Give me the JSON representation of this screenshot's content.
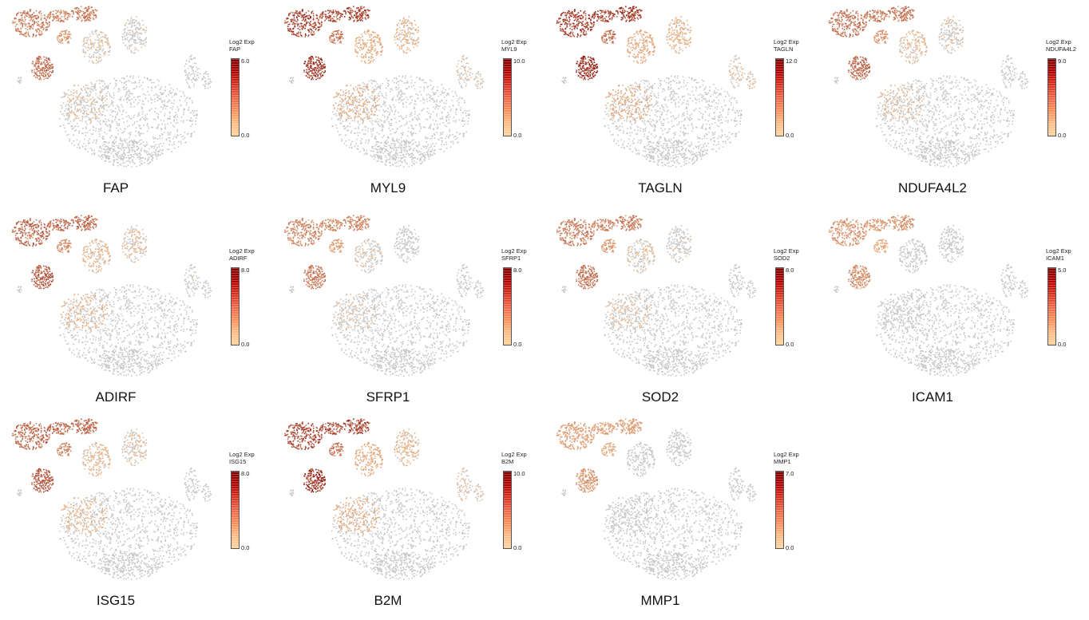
{
  "legend_title": "Log2 Exp",
  "colors": {
    "low": "#fdd49e",
    "high": "#7f0000",
    "zero": "#c8c8c8"
  },
  "chart_data": [
    {
      "type": "scatter",
      "gene": "FAP",
      "legend_min": "0.0",
      "legend_max": "6.0",
      "level": 0.55
    },
    {
      "type": "scatter",
      "gene": "MYL9",
      "legend_min": "0.0",
      "legend_max": "10.0",
      "level": 0.9
    },
    {
      "type": "scatter",
      "gene": "TAGLN",
      "legend_min": "0.0",
      "legend_max": "12.0",
      "level": 0.95
    },
    {
      "type": "scatter",
      "gene": "NDUFA4L2",
      "legend_min": "0.0",
      "legend_max": "9.0",
      "level": 0.6
    },
    {
      "type": "scatter",
      "gene": "ADIRF",
      "legend_min": "0.0",
      "legend_max": "8.0",
      "level": 0.7
    },
    {
      "type": "scatter",
      "gene": "SFRP1",
      "legend_min": "0.0",
      "legend_max": "8.0",
      "level": 0.5
    },
    {
      "type": "scatter",
      "gene": "SOD2",
      "legend_min": "0.0",
      "legend_max": "8.0",
      "level": 0.55
    },
    {
      "type": "scatter",
      "gene": "ICAM1",
      "legend_min": "0.0",
      "legend_max": "5.0",
      "level": 0.4
    },
    {
      "type": "scatter",
      "gene": "ISG15",
      "legend_min": "0.0",
      "legend_max": "8.0",
      "level": 0.7
    },
    {
      "type": "scatter",
      "gene": "B2M",
      "legend_min": "0.0",
      "legend_max": "10.0",
      "level": 0.9
    },
    {
      "type": "scatter",
      "gene": "MMP1",
      "legend_min": "0.0",
      "legend_max": "7.0",
      "level": 0.35
    }
  ]
}
